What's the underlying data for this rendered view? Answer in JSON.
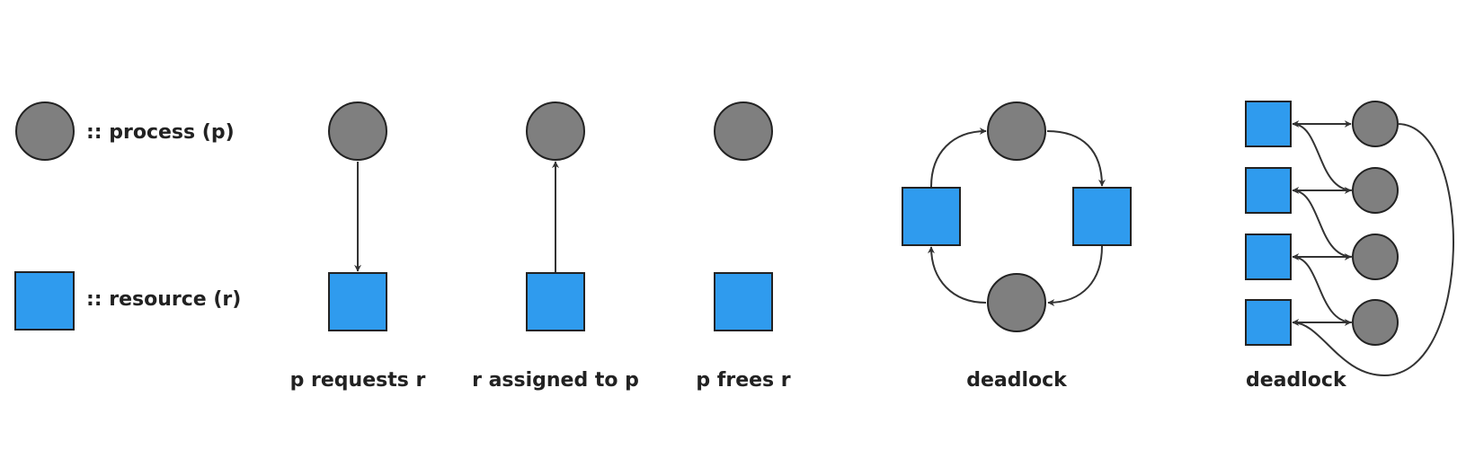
{
  "colors": {
    "process_fill": "#7f7f7f",
    "resource_fill": "#2f9bee",
    "stroke": "#222222",
    "edge": "#333333"
  },
  "legend": {
    "process_label": ":: process (p)",
    "resource_label": ":: resource (r)"
  },
  "scenarios": [
    {
      "caption": "p requests r",
      "edge_direction": "process-to-resource"
    },
    {
      "caption": "r assigned to p",
      "edge_direction": "resource-to-process"
    },
    {
      "caption": "p frees r",
      "edge_direction": "none"
    },
    {
      "caption": "deadlock",
      "edge_direction": "cycle"
    },
    {
      "caption": "deadlock",
      "edge_direction": "cycle"
    }
  ]
}
